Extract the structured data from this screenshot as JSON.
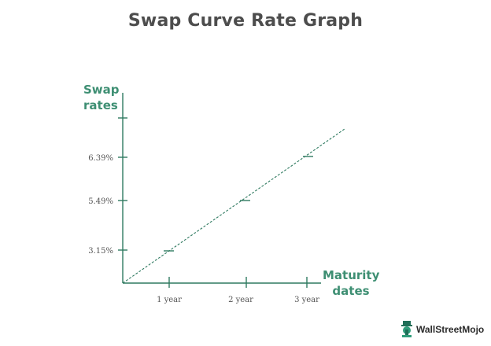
{
  "chart_data": {
    "type": "line",
    "title": "Swap Curve Rate Graph",
    "ylabel_lines": [
      "Swap",
      "rates"
    ],
    "xlabel_lines": [
      "Maturity",
      "dates"
    ],
    "categories": [
      "1 year",
      "2 year",
      "3 year"
    ],
    "y_ticks": [
      "3.15%",
      "5.49%",
      "6.39%"
    ],
    "series": [
      {
        "values": [
          3.15,
          5.49,
          6.39
        ]
      }
    ],
    "line_style": "dashed",
    "grid": false,
    "colors": {
      "axis": "#2f7a60",
      "line": "#2f7a60",
      "label": "#3e8f73",
      "title": "#4d4d4d"
    }
  },
  "branding": {
    "logo_text": "WallStreetMojo",
    "logo_icon": "wallstreetmojo-mascot-icon"
  }
}
